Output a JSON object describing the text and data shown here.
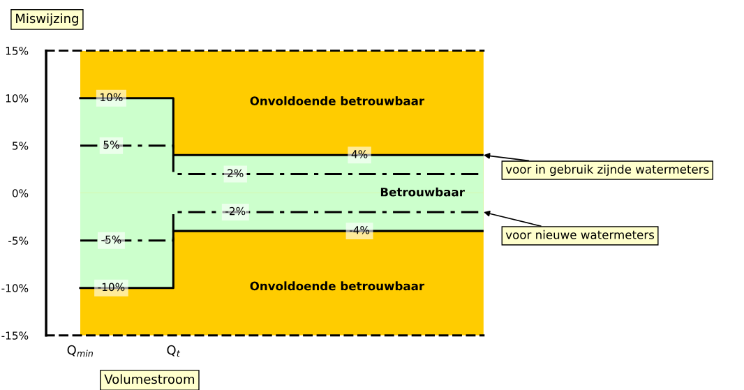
{
  "chart_data": {
    "type": "step",
    "xlabel": "Volumestroom",
    "ylabel": "Miswijzing",
    "categories": [
      "Q$_{min}$",
      null,
      null,
      "Q$_{t}$",
      null,
      null,
      null,
      null,
      null,
      null,
      null,
      null,
      null,
      null
    ],
    "series": [
      {
        "type": "area",
        "color": "#ffcc00",
        "values": [
          15,
          15,
          15,
          15,
          15,
          15,
          15,
          15,
          15,
          15,
          15,
          15,
          15,
          15
        ]
      },
      {
        "type": "area",
        "color": "#ffcc00",
        "values": [
          -15,
          -15,
          -15,
          -15,
          -15,
          -15,
          -15,
          -15,
          -15,
          -15,
          -15,
          -15,
          -15,
          -15
        ]
      },
      {
        "type": "area",
        "color": "#ccffcc",
        "values": [
          10,
          10,
          10,
          4,
          4,
          4,
          4,
          4,
          4,
          4,
          4,
          4,
          4,
          4
        ]
      },
      {
        "type": "area",
        "color": "#ccffcc",
        "values": [
          -10,
          -10,
          -10,
          -4,
          -4,
          -4,
          -4,
          -4,
          -4,
          -4,
          -4,
          -4,
          -4,
          -4
        ]
      },
      {
        "color": "#000000",
        "line_style": "solid",
        "values": [
          10,
          10,
          10,
          4,
          4,
          4,
          4,
          4,
          4,
          4,
          4,
          4,
          4,
          4
        ],
        "value_labels": [
          null,
          "10%",
          null,
          null,
          null,
          null,
          null,
          null,
          null,
          "4%",
          null,
          null,
          null,
          null
        ]
      },
      {
        "color": "#000000",
        "line_style": "solid",
        "values": [
          -10,
          -10,
          -10,
          -4,
          -4,
          -4,
          -4,
          -4,
          -4,
          -4,
          -4,
          -4,
          -4,
          -4
        ],
        "value_labels": [
          null,
          "-10%",
          null,
          null,
          null,
          null,
          null,
          null,
          null,
          "-4%",
          null,
          null,
          null,
          null
        ]
      },
      {
        "color": "#000000",
        "line_style": "dashdot",
        "values": [
          5,
          5,
          5,
          2,
          2,
          2,
          2,
          2,
          2,
          2,
          2,
          2,
          2,
          2
        ],
        "value_labels": [
          null,
          "5%",
          null,
          null,
          null,
          "2%",
          null,
          null,
          null,
          null,
          null,
          null,
          null,
          null
        ]
      },
      {
        "color": "#000000",
        "line_style": "dashdot",
        "values": [
          -5,
          -5,
          -5,
          -2,
          -2,
          -2,
          -2,
          -2,
          -2,
          -2,
          -2,
          -2,
          -2,
          -2
        ],
        "value_labels": [
          null,
          "-5%",
          null,
          null,
          null,
          "-2%",
          null,
          null,
          null,
          null,
          null,
          null,
          null,
          null
        ]
      }
    ],
    "annotations": [
      "Onvoldoende betrouwbaar",
      "Betrouwbaar",
      "Onvoldoende betrouwbaar",
      "voor in gebruik zijnde watermeters",
      "voor nieuwe watermeters"
    ],
    "ylim": [
      -15,
      15
    ],
    "yticks": [
      {
        "value": -15,
        "label": "-15%"
      },
      {
        "value": -10,
        "label": "-10%"
      },
      {
        "value": -5,
        "label": "-5%"
      },
      {
        "value": 0,
        "label": "0%"
      },
      {
        "value": 5,
        "label": "5%"
      },
      {
        "value": 10,
        "label": "10%"
      },
      {
        "value": 15,
        "label": "15%"
      }
    ],
    "grid": false,
    "legend": false
  }
}
